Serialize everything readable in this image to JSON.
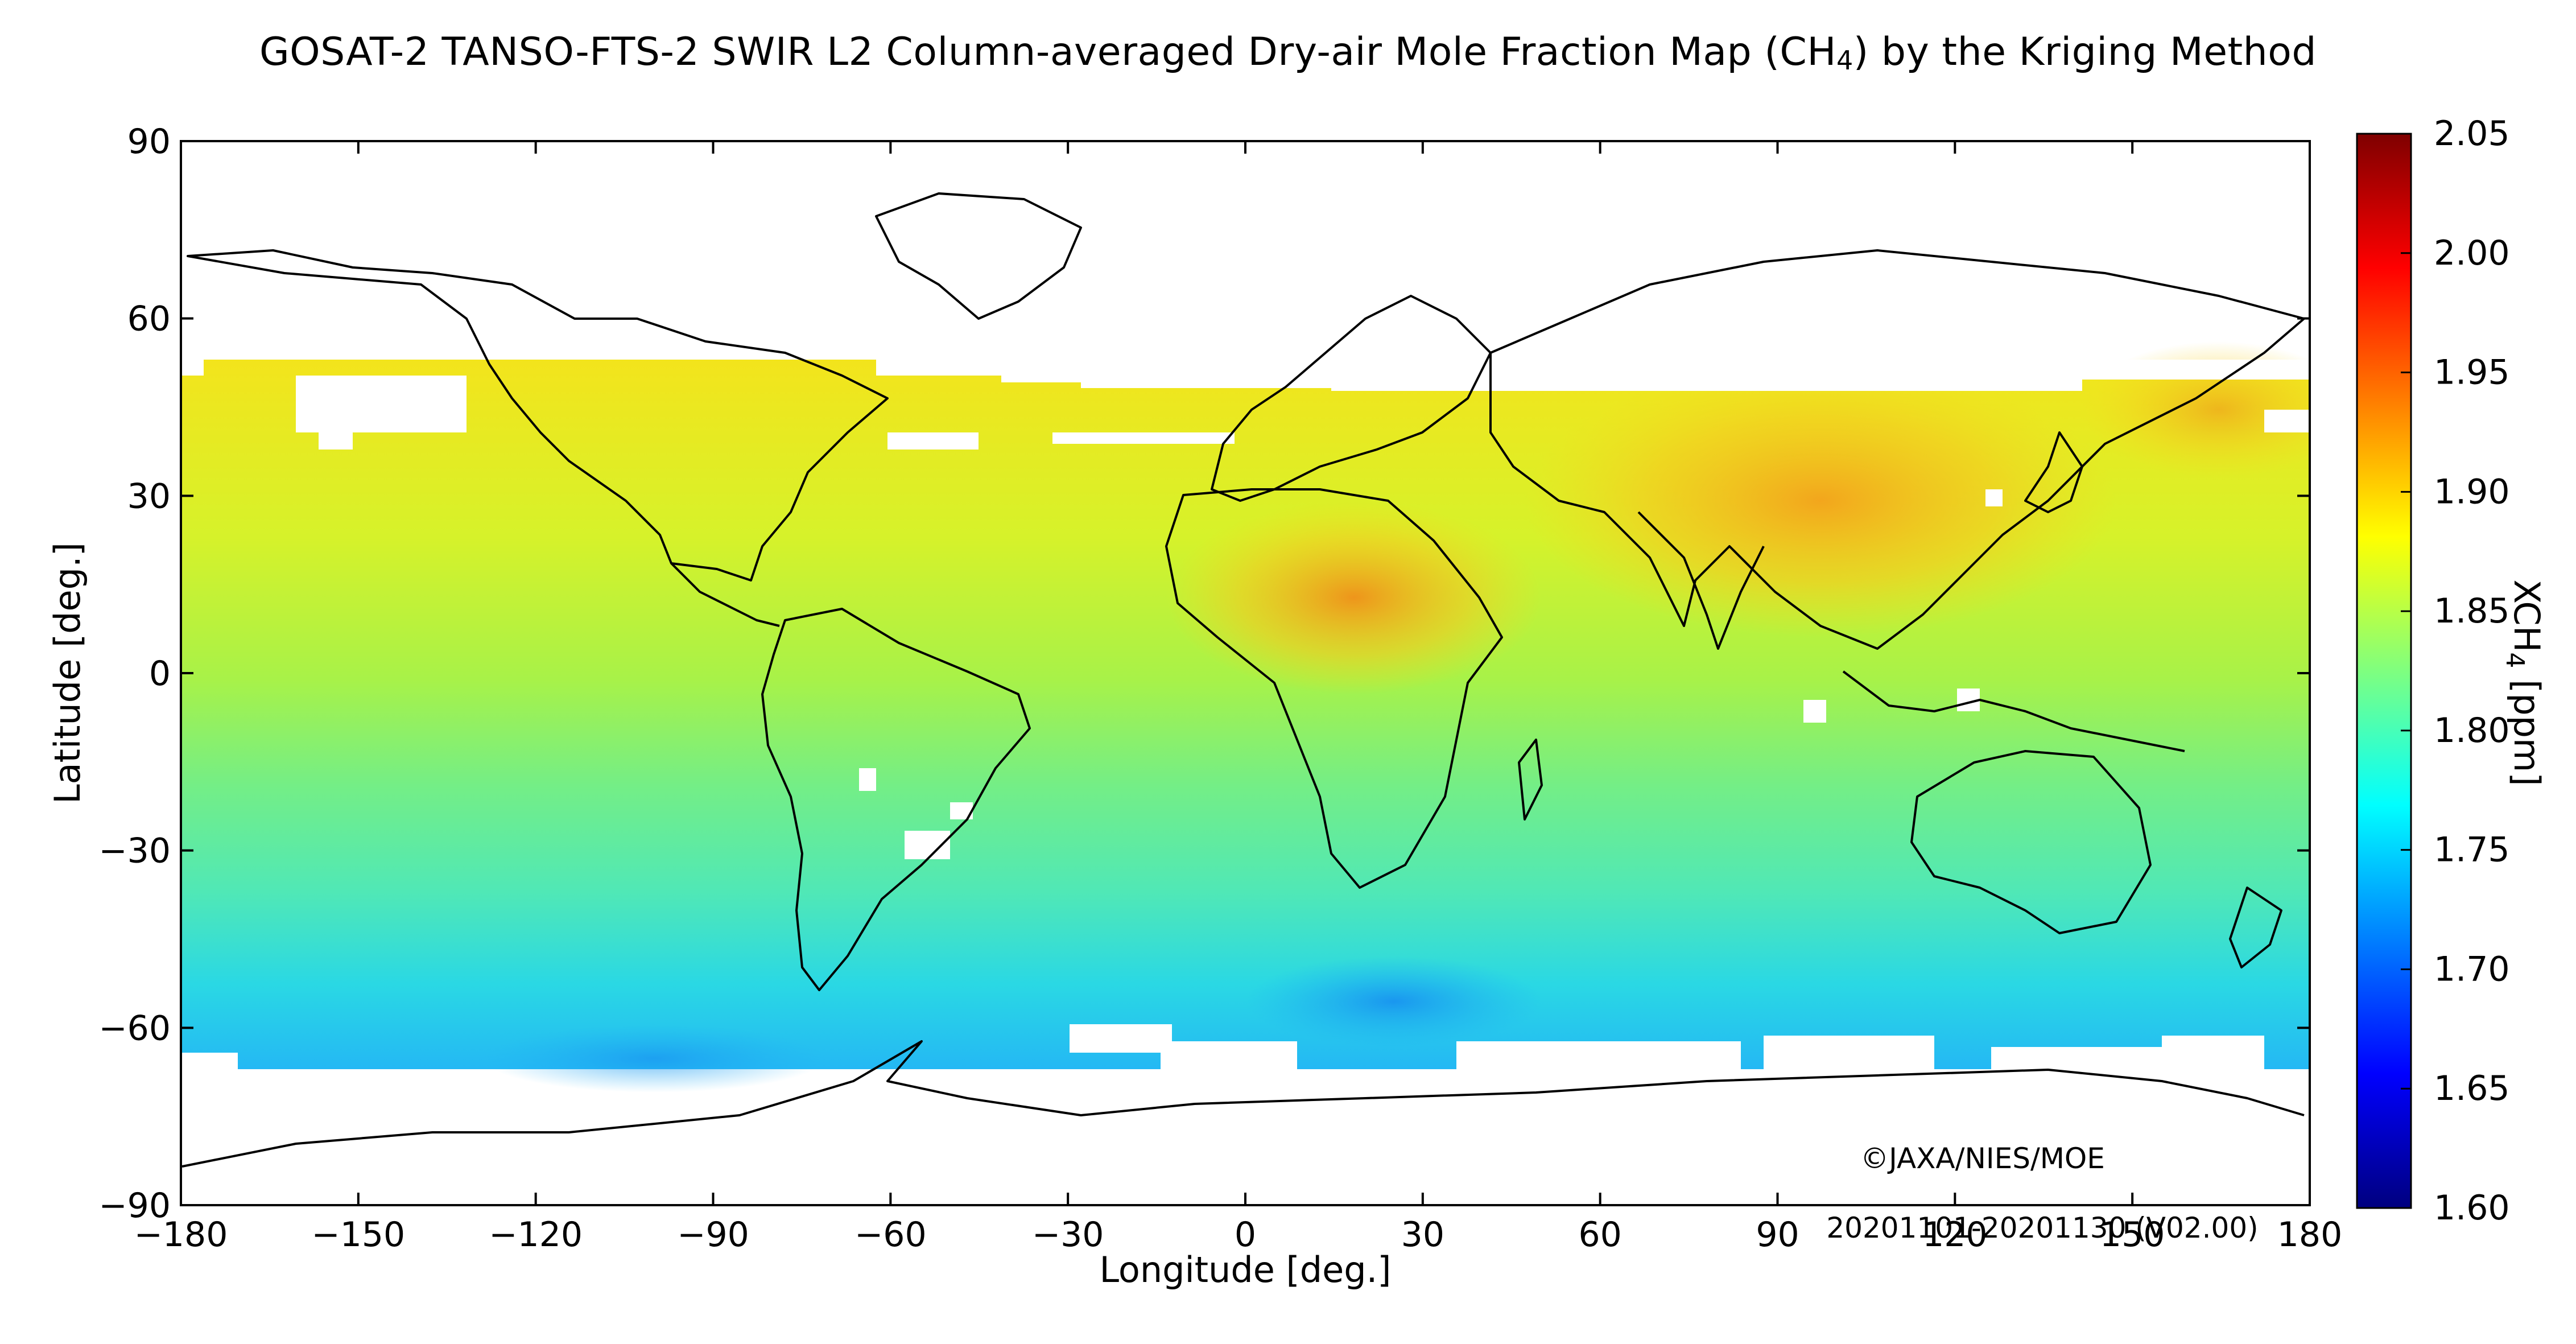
{
  "title": {
    "main": "GOSAT-2 TANSO-FTS-2 SWIR L2 Column-averaged Dry-air Mole Fraction Map (CH",
    "sub": "4",
    "tail": ") by the Kriging Method"
  },
  "map": {
    "xlabel": "Longitude [deg.]",
    "ylabel": "Latitude [deg.]",
    "xlim": [
      -180,
      180
    ],
    "ylim": [
      -90,
      90
    ],
    "x_ticks": [
      -180,
      -150,
      -120,
      -90,
      -60,
      -30,
      0,
      30,
      60,
      90,
      120,
      150,
      180
    ],
    "x_tick_labels": [
      "−180",
      "−150",
      "−120",
      "−90",
      "−60",
      "−30",
      "0",
      "30",
      "60",
      "90",
      "120",
      "150",
      "180"
    ],
    "y_ticks": [
      90,
      60,
      30,
      0,
      -30,
      -60,
      -90
    ],
    "y_tick_labels": [
      "90",
      "60",
      "30",
      "0",
      "−30",
      "−60",
      "−90"
    ],
    "copyright": "©JAXA/NIES/MOE",
    "period": "20201101-20201130 (V02.00)",
    "data_coverage_lat": [
      -66,
      54
    ]
  },
  "colorbar": {
    "label_main": "XCH",
    "label_sub": "4",
    "label_unit": " [ppm]",
    "min": 1.6,
    "max": 2.05,
    "ticks": [
      2.05,
      2.0,
      1.95,
      1.9,
      1.85,
      1.8,
      1.75,
      1.7,
      1.65,
      1.6
    ],
    "tick_labels": [
      "2.05",
      "2.00",
      "1.95",
      "1.90",
      "1.85",
      "1.80",
      "1.75",
      "1.70",
      "1.65",
      "1.60"
    ],
    "colors": [
      "#00007f",
      "#0000ff",
      "#007fff",
      "#00ffff",
      "#7fff7f",
      "#ffff00",
      "#ff7f00",
      "#ff0000",
      "#7f0000"
    ]
  }
}
